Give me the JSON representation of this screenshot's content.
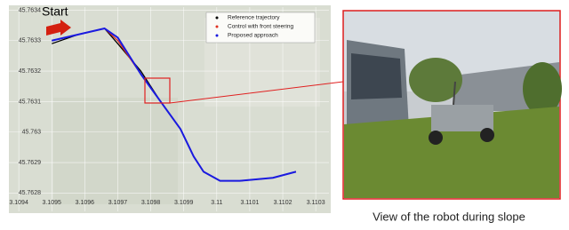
{
  "chart_data": {
    "type": "line",
    "annotation": "Start",
    "x": [
      3.1095,
      3.10958,
      3.10966,
      3.1097,
      3.10977,
      3.10983,
      3.10989,
      3.10993,
      3.10996,
      3.11001,
      3.11007,
      3.11017,
      3.11024
    ],
    "series": [
      {
        "name": "Reference trajectory",
        "color": "#000000",
        "values": [
          45.76329,
          45.76332,
          45.76334,
          45.76329,
          45.7632,
          45.7631,
          45.76301,
          45.76292,
          45.76287,
          45.76284,
          45.76284,
          45.76285,
          45.76287
        ]
      },
      {
        "name": "Control with front steering",
        "color": "#e03020",
        "values": [
          45.7633,
          45.76332,
          45.76334,
          45.7633,
          45.76319,
          45.7631,
          45.76301,
          45.76292,
          45.76287,
          45.76284,
          45.76284,
          45.76285,
          45.76287
        ]
      },
      {
        "name": "Proposed approach",
        "color": "#1a1ae0",
        "values": [
          45.7633,
          45.76332,
          45.76334,
          45.76331,
          45.76319,
          45.7631,
          45.76301,
          45.76292,
          45.76287,
          45.76284,
          45.76284,
          45.76285,
          45.76287
        ]
      }
    ],
    "xlim": [
      3.10937,
      3.11034
    ],
    "ylim": [
      45.76274,
      45.76341
    ],
    "xticks": [
      3.1094,
      3.1095,
      3.1096,
      3.1097,
      3.1098,
      3.1099,
      3.11,
      3.1101,
      3.1102,
      3.1103
    ],
    "yticks": [
      45.7628,
      45.7629,
      45.763,
      45.7631,
      45.7632,
      45.7633,
      45.7634
    ],
    "grid": true,
    "legend": "upper right"
  },
  "caption": "View of the robot during slope"
}
